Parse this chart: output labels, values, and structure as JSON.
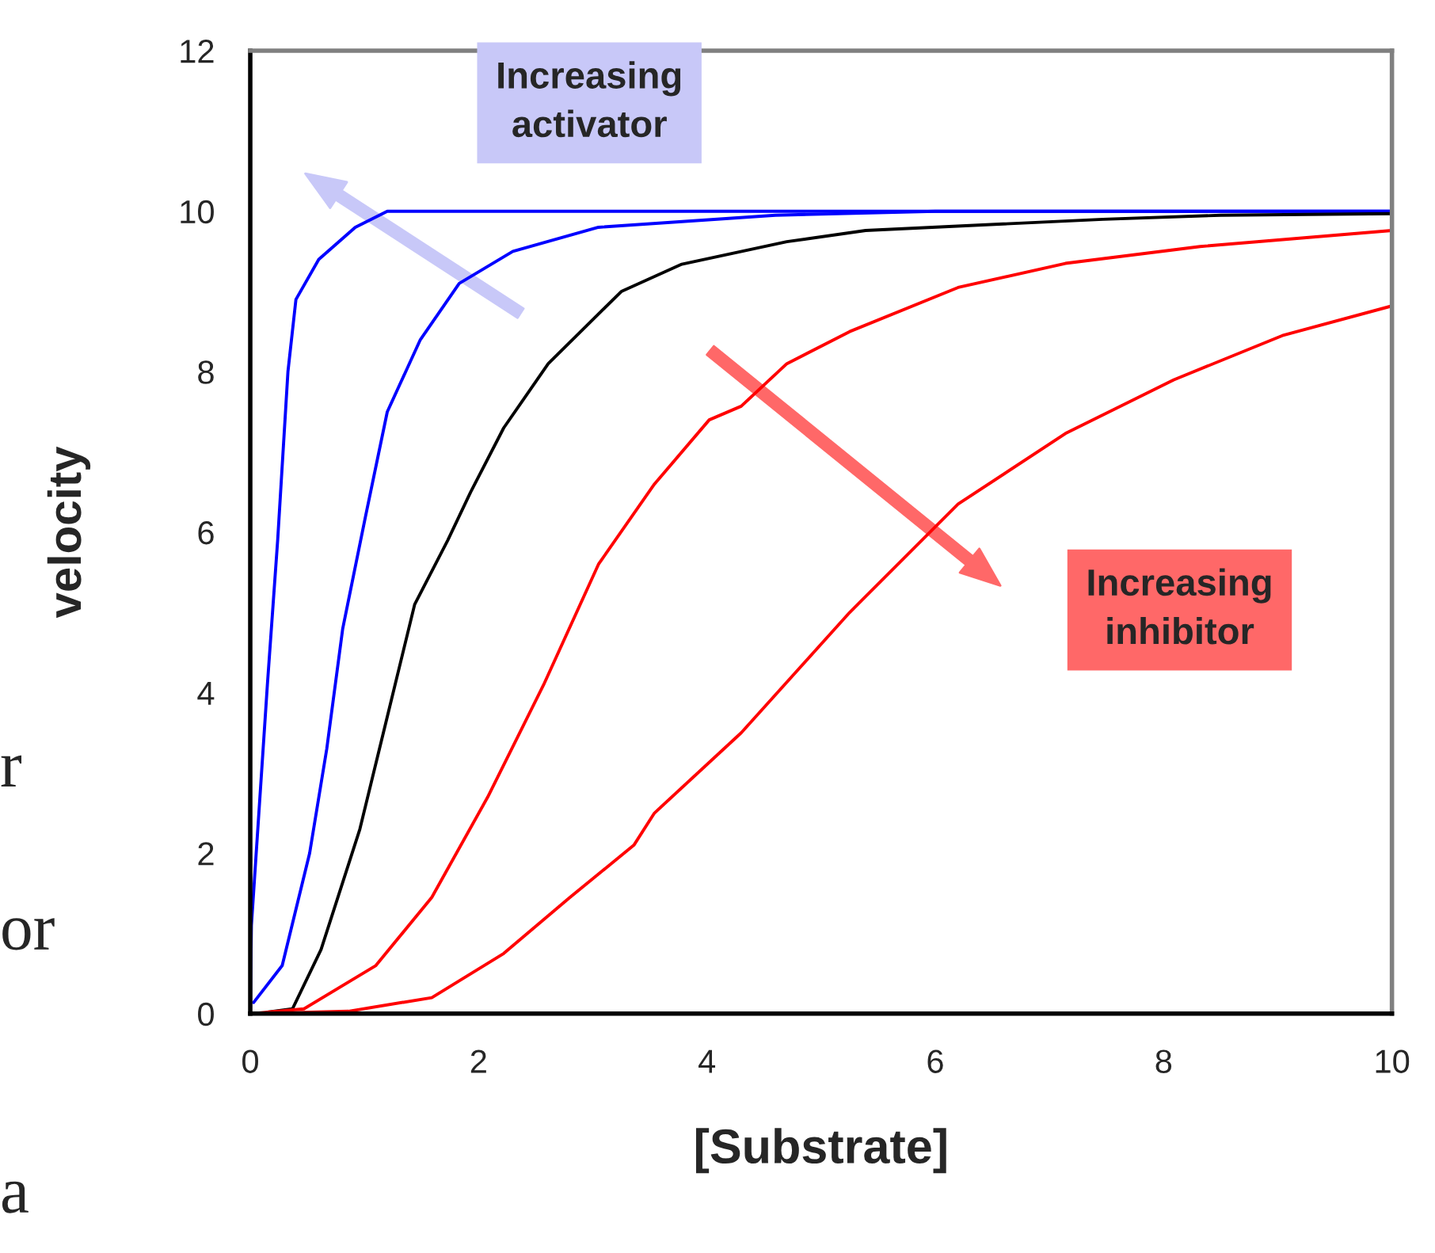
{
  "chart_data": {
    "type": "line",
    "xlabel": "[Substrate]",
    "ylabel": "velocity",
    "xlim": [
      0,
      10
    ],
    "ylim": [
      0,
      12
    ],
    "xticks": [
      0,
      2,
      4,
      6,
      8,
      10
    ],
    "yticks": [
      0,
      2,
      4,
      6,
      8,
      10,
      12
    ],
    "grid": false,
    "legend": false,
    "marker": "none",
    "line_style": "solid",
    "series": [
      {
        "color": "#0000ff",
        "x": [
          0,
          0.01,
          0.15,
          0.24,
          0.33,
          0.4,
          0.6,
          0.92,
          1.2,
          2,
          4,
          6,
          8,
          10
        ],
        "values": [
          0,
          1.1,
          4.1,
          5.9,
          8.0,
          8.9,
          9.4,
          9.8,
          10,
          10,
          10,
          10,
          10,
          10
        ]
      },
      {
        "color": "#0000ff",
        "x": [
          0.03,
          0.28,
          0.52,
          0.67,
          0.81,
          1.01,
          1.2,
          1.49,
          1.83,
          2.3,
          3.05,
          4.6,
          6,
          8,
          10
        ],
        "values": [
          0.14,
          0.6,
          2.0,
          3.3,
          4.8,
          6.2,
          7.5,
          8.4,
          9.1,
          9.5,
          9.8,
          9.95,
          10,
          10,
          10
        ]
      },
      {
        "color": "#000000",
        "x": [
          0.15,
          0.37,
          0.62,
          0.96,
          1.2,
          1.44,
          1.73,
          1.93,
          2.22,
          2.61,
          3.25,
          3.78,
          4.7,
          5.39,
          7.47,
          8.5,
          10
        ],
        "values": [
          0.02,
          0.06,
          0.8,
          2.3,
          3.7,
          5.1,
          5.9,
          6.5,
          7.3,
          8.1,
          9.0,
          9.34,
          9.62,
          9.76,
          9.9,
          9.95,
          9.97
        ]
      },
      {
        "color": "#ff0000",
        "x": [
          0,
          0.47,
          1.1,
          1.59,
          2.08,
          2.57,
          3.05,
          3.54,
          4.02,
          4.3,
          4.7,
          5.25,
          6.2,
          7.14,
          8.32,
          10
        ],
        "values": [
          0,
          0.06,
          0.6,
          1.45,
          2.7,
          4.1,
          5.6,
          6.6,
          7.4,
          7.57,
          8.1,
          8.5,
          9.05,
          9.35,
          9.56,
          9.76
        ]
      },
      {
        "color": "#ff0000",
        "x": [
          0,
          0.86,
          1.59,
          2.22,
          2.8,
          3.36,
          3.54,
          4.3,
          5.25,
          6.2,
          7.14,
          8.09,
          9.04,
          10
        ],
        "values": [
          0,
          0.03,
          0.2,
          0.75,
          1.45,
          2.1,
          2.5,
          3.5,
          5.0,
          6.35,
          7.23,
          7.9,
          8.45,
          8.82
        ]
      }
    ],
    "annotations": [
      "Increasing\nactivator",
      "Increasing\ninhibitor",
      "r",
      "or",
      "a"
    ]
  }
}
